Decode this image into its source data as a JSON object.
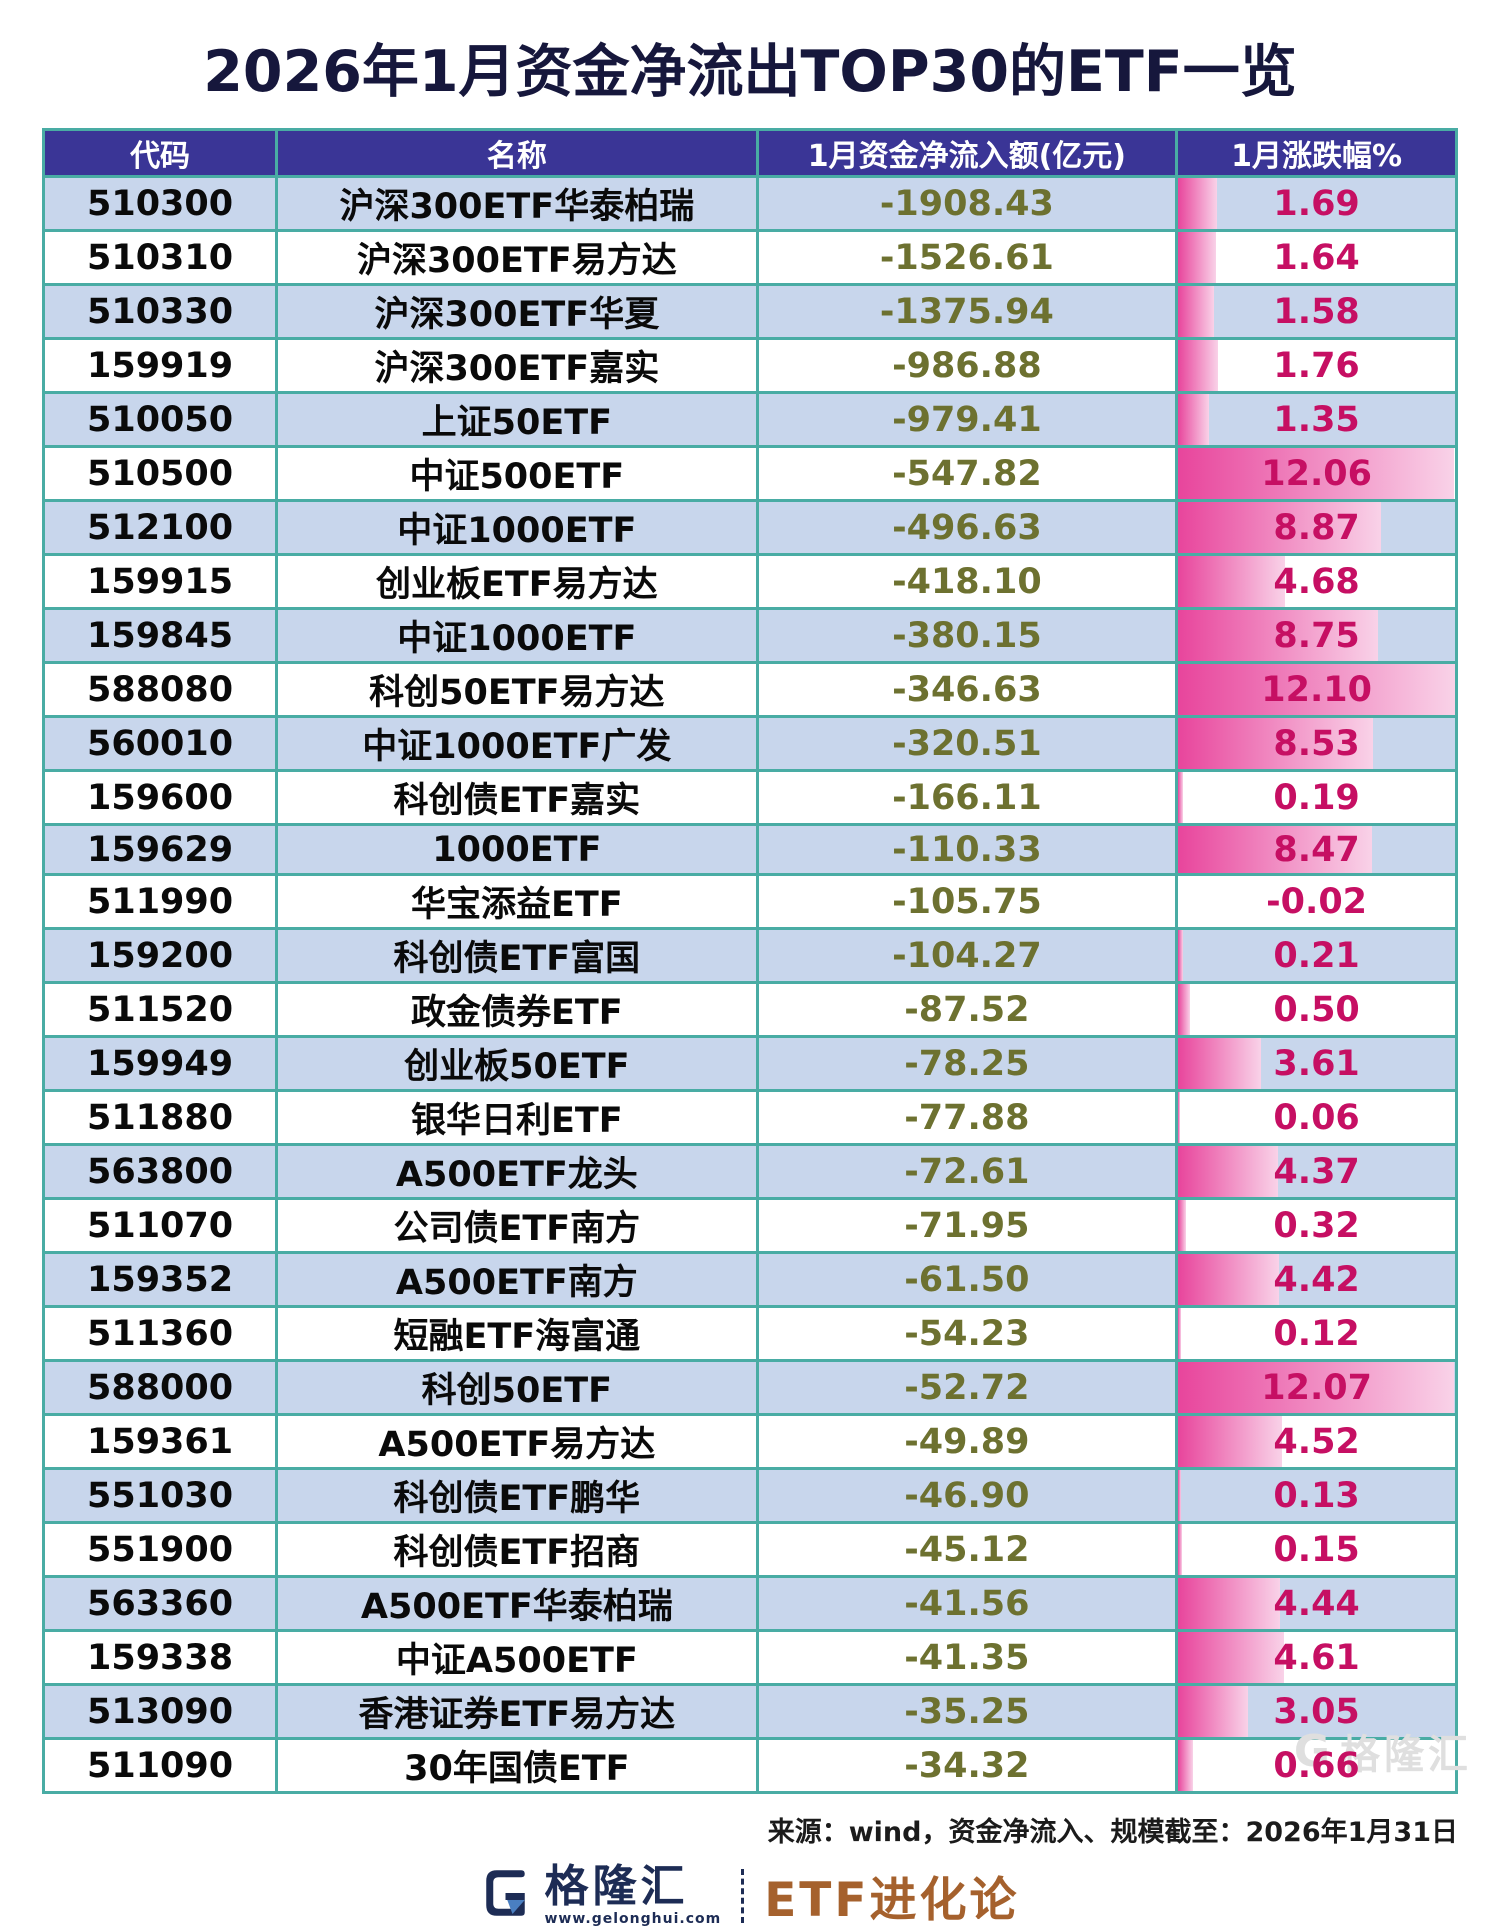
{
  "title": "2026年1月资金净流出TOP30的ETF一览",
  "chart_data": {
    "type": "table",
    "title": "2026年1月资金净流出TOP30的ETF一览",
    "columns": [
      "代码",
      "名称",
      "1月资金净流入额(亿元)",
      "1月涨跌幅%"
    ],
    "bar_axis_max": 12.1,
    "bar_note": "in-cell pink gradient bar, length proportional to 1月涨跌幅%, no bar for negative values",
    "rows": [
      {
        "code": "510300",
        "name": "沪深300ETF华泰柏瑞",
        "net_flow": -1908.43,
        "change_pct": 1.69
      },
      {
        "code": "510310",
        "name": "沪深300ETF易方达",
        "net_flow": -1526.61,
        "change_pct": 1.64
      },
      {
        "code": "510330",
        "name": "沪深300ETF华夏",
        "net_flow": -1375.94,
        "change_pct": 1.58
      },
      {
        "code": "159919",
        "name": "沪深300ETF嘉实",
        "net_flow": -986.88,
        "change_pct": 1.76
      },
      {
        "code": "510050",
        "name": "上证50ETF",
        "net_flow": -979.41,
        "change_pct": 1.35
      },
      {
        "code": "510500",
        "name": "中证500ETF",
        "net_flow": -547.82,
        "change_pct": 12.06
      },
      {
        "code": "512100",
        "name": "中证1000ETF",
        "net_flow": -496.63,
        "change_pct": 8.87
      },
      {
        "code": "159915",
        "name": "创业板ETF易方达",
        "net_flow": -418.1,
        "change_pct": 4.68
      },
      {
        "code": "159845",
        "name": "中证1000ETF",
        "net_flow": -380.15,
        "change_pct": 8.75
      },
      {
        "code": "588080",
        "name": "科创50ETF易方达",
        "net_flow": -346.63,
        "change_pct": 12.1
      },
      {
        "code": "560010",
        "name": "中证1000ETF广发",
        "net_flow": -320.51,
        "change_pct": 8.53
      },
      {
        "code": "159600",
        "name": "科创债ETF嘉实",
        "net_flow": -166.11,
        "change_pct": 0.19
      },
      {
        "code": "159629",
        "name": "1000ETF",
        "net_flow": -110.33,
        "change_pct": 8.47
      },
      {
        "code": "511990",
        "name": "华宝添益ETF",
        "net_flow": -105.75,
        "change_pct": -0.02
      },
      {
        "code": "159200",
        "name": "科创债ETF富国",
        "net_flow": -104.27,
        "change_pct": 0.21
      },
      {
        "code": "511520",
        "name": "政金债券ETF",
        "net_flow": -87.52,
        "change_pct": 0.5
      },
      {
        "code": "159949",
        "name": "创业板50ETF",
        "net_flow": -78.25,
        "change_pct": 3.61
      },
      {
        "code": "511880",
        "name": "银华日利ETF",
        "net_flow": -77.88,
        "change_pct": 0.06
      },
      {
        "code": "563800",
        "name": "A500ETF龙头",
        "net_flow": -72.61,
        "change_pct": 4.37
      },
      {
        "code": "511070",
        "name": "公司债ETF南方",
        "net_flow": -71.95,
        "change_pct": 0.32
      },
      {
        "code": "159352",
        "name": "A500ETF南方",
        "net_flow": -61.5,
        "change_pct": 4.42
      },
      {
        "code": "511360",
        "name": "短融ETF海富通",
        "net_flow": -54.23,
        "change_pct": 0.12
      },
      {
        "code": "588000",
        "name": "科创50ETF",
        "net_flow": -52.72,
        "change_pct": 12.07
      },
      {
        "code": "159361",
        "name": "A500ETF易方达",
        "net_flow": -49.89,
        "change_pct": 4.52
      },
      {
        "code": "551030",
        "name": "科创债ETF鹏华",
        "net_flow": -46.9,
        "change_pct": 0.13
      },
      {
        "code": "551900",
        "name": "科创债ETF招商",
        "net_flow": -45.12,
        "change_pct": 0.15
      },
      {
        "code": "563360",
        "name": "A500ETF华泰柏瑞",
        "net_flow": -41.56,
        "change_pct": 4.44
      },
      {
        "code": "159338",
        "name": "中证A500ETF",
        "net_flow": -41.35,
        "change_pct": 4.61
      },
      {
        "code": "513090",
        "name": "香港证券ETF易方达",
        "net_flow": -35.25,
        "change_pct": 3.05
      },
      {
        "code": "511090",
        "name": "30年国债ETF",
        "net_flow": -34.32,
        "change_pct": 0.66
      }
    ]
  },
  "footer": {
    "source": "来源：wind，资金净流入、规模截至：2026年1月31日",
    "brand_name": "格隆汇",
    "brand_url": "www.gelonghui.com",
    "etf_line": "ETF进化论",
    "watermark": "格隆汇"
  },
  "colors": {
    "header_bg": "#3a3596",
    "row_alt": "#c8d6ec",
    "grid_border": "#49aca4",
    "net_flow_text": "#6d7130",
    "change_text": "#c60f63",
    "bar_gradient_from": "#e8459c",
    "bar_gradient_to": "#f9d2e8",
    "title": "#16173c",
    "brand_navy": "#1d2c55",
    "brand_bronze": "#a5612d"
  }
}
